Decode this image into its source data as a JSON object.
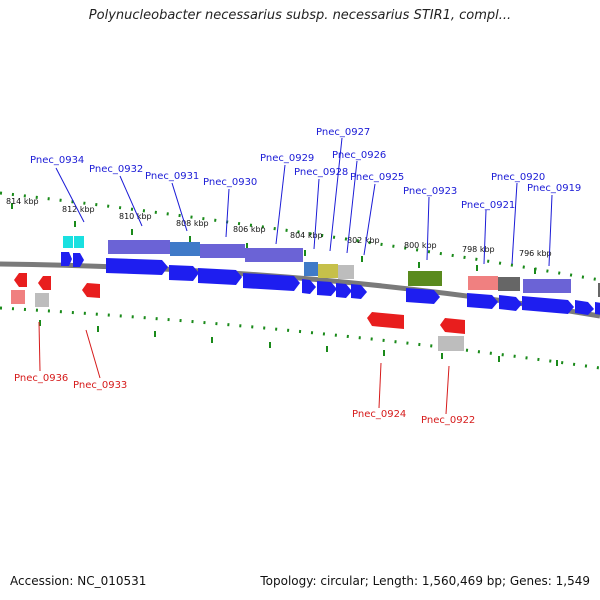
{
  "title": "Polynucleobacter necessarius subsp. necessarius STIR1, compl...",
  "accession": "Accession: NC_010531",
  "topology": "Topology: circular; Length: 1,560,469 bp; Genes: 1,549",
  "colors": {
    "plus_gene": "#1e1ef0",
    "minus_gene": "#e81e1e",
    "backbone": "#7a7a7a",
    "ticks": "#1a8a1a",
    "plus_label": "#1b1bd6",
    "minus_label": "#d61b1b"
  },
  "ticks": [
    "814 kbp",
    "812 kbp",
    "810 kbp",
    "808 kbp",
    "806 kbp",
    "804 kbp",
    "802 kbp",
    "800 kbp",
    "798 kbp",
    "796 kbp"
  ],
  "plus_genes": [
    "Pnec_0934",
    "Pnec_0932",
    "Pnec_0931",
    "Pnec_0930",
    "Pnec_0929",
    "Pnec_0928",
    "Pnec_0927",
    "Pnec_0926",
    "Pnec_0925",
    "Pnec_0923",
    "Pnec_0921",
    "Pnec_0920",
    "Pnec_0919"
  ],
  "minus_genes": [
    "Pnec_0936",
    "Pnec_0933",
    "Pnec_0924",
    "Pnec_0922"
  ]
}
